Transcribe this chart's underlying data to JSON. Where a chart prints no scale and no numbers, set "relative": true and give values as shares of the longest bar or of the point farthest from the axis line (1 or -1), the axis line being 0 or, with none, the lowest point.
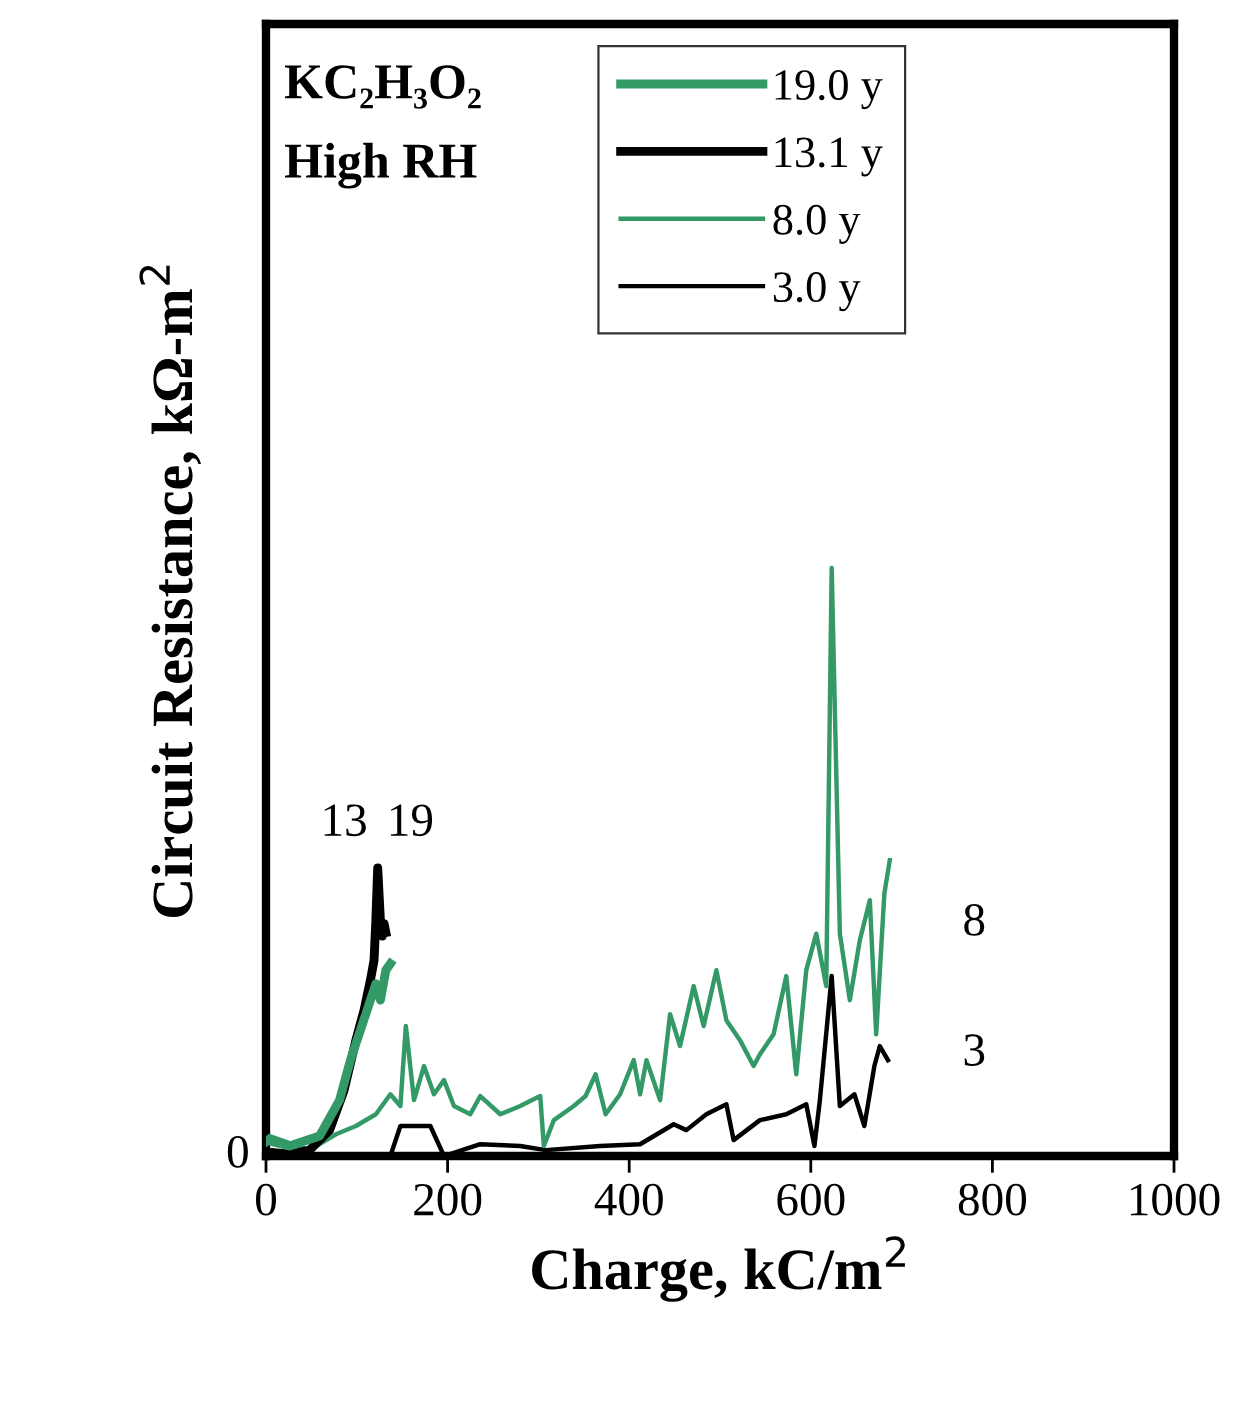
{
  "chart_data": {
    "type": "line",
    "relative": true,
    "xlabel": "Charge, kC/m$^{2}$",
    "ylabel": "Circuit Resistance, kΩ-m$^{2}$",
    "xlim": [
      0,
      1000
    ],
    "xticks": [
      0,
      200,
      400,
      600,
      800,
      1000
    ],
    "grid": false,
    "legend": "top",
    "marker": "none",
    "line_style": "solid",
    "series": [
      {
        "name": "19.0 y",
        "color": "#339966",
        "x": [
          0,
          26,
          59,
          81,
          93,
          104,
          115,
          121,
          126,
          132,
          137
        ],
        "values": [
          0.027,
          0.017,
          0.034,
          0.095,
          0.163,
          0.214,
          0.265,
          0.293,
          0.265,
          0.316,
          0.327
        ]
      },
      {
        "name": "13.1 y",
        "color": "#000000",
        "x": [
          0,
          26,
          48,
          70,
          86,
          99,
          108,
          115,
          119,
          121,
          123,
          126,
          128,
          130,
          132
        ],
        "values": [
          0.007,
          0.003,
          0.01,
          0.044,
          0.112,
          0.197,
          0.248,
          0.299,
          0.333,
          0.401,
          0.49,
          0.401,
          0.374,
          0.395,
          0.38
        ]
      },
      {
        "name": "8.0 y",
        "color": "#339966",
        "x": [
          0,
          4,
          48,
          77,
          99,
          121,
          137,
          148,
          154,
          163,
          174,
          185,
          196,
          207,
          225,
          236,
          258,
          280,
          302,
          306,
          317,
          339,
          352,
          363,
          374,
          390,
          405,
          412,
          419,
          434,
          445,
          456,
          471,
          482,
          496,
          507,
          522,
          537,
          544,
          559,
          573,
          584,
          595,
          606,
          617,
          623,
          632,
          643,
          654,
          665,
          672,
          681,
          687
        ],
        "values": [
          0.02,
          0.034,
          0.01,
          0.037,
          0.051,
          0.071,
          0.105,
          0.085,
          0.221,
          0.095,
          0.153,
          0.105,
          0.129,
          0.085,
          0.071,
          0.102,
          0.071,
          0.085,
          0.102,
          0.017,
          0.061,
          0.085,
          0.102,
          0.139,
          0.071,
          0.105,
          0.163,
          0.105,
          0.163,
          0.095,
          0.241,
          0.187,
          0.289,
          0.221,
          0.316,
          0.231,
          0.197,
          0.153,
          0.173,
          0.207,
          0.306,
          0.139,
          0.316,
          0.378,
          0.289,
          1.0,
          0.378,
          0.265,
          0.367,
          0.435,
          0.207,
          0.446,
          0.503
        ]
      },
      {
        "name": "3.0 y",
        "color": "#000000",
        "x": [
          0,
          59,
          137,
          148,
          181,
          196,
          236,
          280,
          308,
          368,
          412,
          449,
          463,
          485,
          507,
          515,
          544,
          573,
          595,
          604,
          610,
          623,
          632,
          648,
          659,
          670,
          676,
          685
        ],
        "values": [
          0.007,
          0.0,
          0.0,
          0.051,
          0.051,
          0.0,
          0.02,
          0.017,
          0.01,
          0.017,
          0.02,
          0.054,
          0.044,
          0.071,
          0.088,
          0.027,
          0.061,
          0.071,
          0.088,
          0.017,
          0.095,
          0.306,
          0.085,
          0.105,
          0.051,
          0.153,
          0.187,
          0.163
        ]
      }
    ],
    "annotations": [
      "KC₂H₃O₂",
      "High RH",
      "0",
      "13",
      "19",
      "8",
      "3"
    ]
  }
}
